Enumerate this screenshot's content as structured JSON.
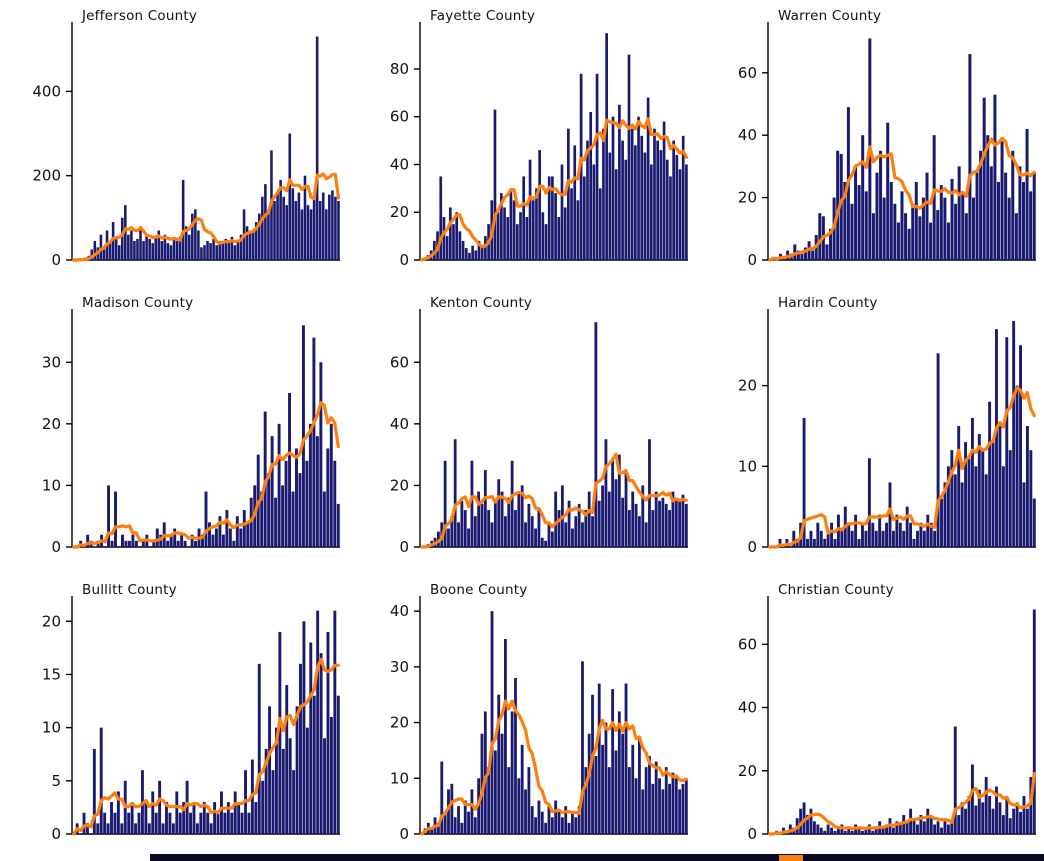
{
  "figure": {
    "kind": "small-multiples",
    "rows": 3,
    "cols": 3,
    "grid": false,
    "legend": "none"
  },
  "colors": {
    "bar": "#191970",
    "line": "#ff7f0e",
    "spine": "#000000",
    "text": "#111111"
  },
  "chart_data": [
    {
      "type": "bar",
      "title": "Jefferson County",
      "xlabel": "",
      "ylabel": "",
      "yticks": [
        0,
        200,
        400
      ],
      "ylim": [
        0,
        555
      ],
      "overlay_line": "rolling-mean-7",
      "values": [
        0,
        0,
        3,
        2,
        6,
        10,
        25,
        45,
        30,
        60,
        25,
        70,
        40,
        90,
        55,
        35,
        100,
        130,
        60,
        70,
        45,
        50,
        80,
        45,
        60,
        50,
        40,
        55,
        70,
        45,
        60,
        40,
        35,
        50,
        45,
        55,
        190,
        80,
        60,
        110,
        120,
        70,
        30,
        35,
        45,
        40,
        50,
        35,
        45,
        40,
        50,
        45,
        55,
        35,
        45,
        60,
        120,
        80,
        70,
        65,
        90,
        110,
        150,
        180,
        120,
        260,
        140,
        160,
        190,
        150,
        130,
        300,
        170,
        140,
        160,
        120,
        200,
        130,
        120,
        150,
        530,
        140,
        160,
        120,
        155,
        165,
        150,
        140
      ]
    },
    {
      "type": "bar",
      "title": "Fayette County",
      "xlabel": "",
      "ylabel": "",
      "yticks": [
        0,
        20,
        40,
        60,
        80
      ],
      "ylim": [
        0,
        98
      ],
      "overlay_line": "rolling-mean-7",
      "values": [
        0,
        1,
        2,
        4,
        8,
        12,
        35,
        18,
        10,
        22,
        15,
        20,
        12,
        8,
        5,
        3,
        6,
        4,
        8,
        5,
        10,
        15,
        25,
        63,
        20,
        28,
        22,
        18,
        30,
        25,
        15,
        20,
        35,
        18,
        42,
        25,
        30,
        46,
        20,
        15,
        35,
        35,
        28,
        18,
        40,
        22,
        55,
        30,
        48,
        25,
        78,
        35,
        50,
        62,
        40,
        78,
        30,
        55,
        95,
        45,
        60,
        38,
        65,
        50,
        42,
        86,
        55,
        48,
        60,
        52,
        45,
        68,
        40,
        55,
        50,
        46,
        58,
        42,
        35,
        50,
        44,
        38,
        52,
        40
      ]
    },
    {
      "type": "bar",
      "title": "Warren County",
      "xlabel": "",
      "ylabel": "",
      "yticks": [
        0,
        20,
        40,
        60
      ],
      "ylim": [
        0,
        75
      ],
      "overlay_line": "rolling-mean-7",
      "values": [
        0,
        1,
        0,
        2,
        1,
        3,
        2,
        5,
        3,
        2,
        4,
        6,
        3,
        8,
        15,
        14,
        5,
        10,
        20,
        35,
        34,
        25,
        49,
        18,
        30,
        24,
        40,
        22,
        71,
        15,
        28,
        35,
        20,
        44,
        25,
        18,
        12,
        22,
        15,
        10,
        18,
        25,
        14,
        20,
        28,
        12,
        40,
        16,
        24,
        20,
        12,
        26,
        18,
        30,
        22,
        15,
        66,
        20,
        28,
        35,
        52,
        40,
        30,
        53,
        25,
        38,
        28,
        20,
        35,
        15,
        30,
        25,
        42,
        22,
        28
      ]
    },
    {
      "type": "bar",
      "title": "Madison County",
      "xlabel": "",
      "ylabel": "",
      "yticks": [
        0,
        10,
        20,
        30
      ],
      "ylim": [
        0,
        38
      ],
      "overlay_line": "rolling-mean-7",
      "values": [
        0,
        0,
        1,
        0,
        2,
        1,
        0,
        1,
        2,
        0,
        10,
        1,
        9,
        0,
        2,
        1,
        1,
        2,
        1,
        0,
        1,
        2,
        0,
        1,
        3,
        2,
        4,
        1,
        2,
        3,
        1,
        2,
        1,
        0,
        2,
        1,
        3,
        2,
        9,
        4,
        2,
        3,
        5,
        2,
        6,
        3,
        1,
        5,
        3,
        6,
        4,
        8,
        10,
        15,
        9,
        22,
        12,
        18,
        8,
        20,
        10,
        14,
        25,
        9,
        16,
        12,
        36,
        14,
        20,
        34,
        18,
        30,
        9,
        16,
        20,
        14,
        7
      ]
    },
    {
      "type": "bar",
      "title": "Kenton County",
      "xlabel": "",
      "ylabel": "",
      "yticks": [
        0,
        20,
        40,
        60
      ],
      "ylim": [
        0,
        76
      ],
      "overlay_line": "rolling-mean-7",
      "values": [
        0,
        0,
        1,
        2,
        3,
        5,
        8,
        28,
        6,
        10,
        35,
        8,
        15,
        12,
        6,
        28,
        10,
        18,
        14,
        25,
        12,
        8,
        15,
        22,
        18,
        10,
        16,
        28,
        12,
        18,
        20,
        8,
        14,
        10,
        6,
        12,
        3,
        2,
        8,
        5,
        18,
        12,
        20,
        8,
        15,
        6,
        10,
        14,
        8,
        12,
        18,
        10,
        73,
        15,
        20,
        35,
        18,
        28,
        22,
        30,
        16,
        25,
        12,
        18,
        14,
        10,
        20,
        8,
        35,
        12,
        18,
        15,
        16,
        14,
        12,
        18,
        16,
        15,
        17,
        14
      ]
    },
    {
      "type": "bar",
      "title": "Hardin County",
      "xlabel": "",
      "ylabel": "",
      "yticks": [
        0,
        10,
        20
      ],
      "ylim": [
        0,
        29
      ],
      "overlay_line": "rolling-mean-7",
      "values": [
        0,
        0,
        0,
        1,
        0,
        1,
        0,
        2,
        1,
        3,
        16,
        1,
        2,
        1,
        3,
        2,
        1,
        2,
        3,
        1,
        4,
        2,
        5,
        3,
        2,
        4,
        1,
        3,
        2,
        11,
        3,
        2,
        4,
        2,
        3,
        8,
        2,
        4,
        3,
        2,
        5,
        3,
        1,
        2,
        3,
        2,
        4,
        3,
        2,
        24,
        6,
        8,
        10,
        12,
        9,
        15,
        8,
        13,
        11,
        16,
        10,
        14,
        12,
        9,
        18,
        13,
        27,
        15,
        10,
        26,
        12,
        28,
        20,
        25,
        8,
        15,
        12,
        6
      ]
    },
    {
      "type": "bar",
      "title": "Bullitt County",
      "xlabel": "",
      "ylabel": "",
      "yticks": [
        0,
        5,
        10,
        15,
        20
      ],
      "ylim": [
        0,
        22
      ],
      "overlay_line": "rolling-mean-7",
      "values": [
        0,
        1,
        0,
        2,
        1,
        0,
        8,
        1,
        10,
        2,
        1,
        3,
        2,
        4,
        1,
        5,
        2,
        3,
        1,
        2,
        6,
        3,
        1,
        4,
        2,
        5,
        1,
        3,
        2,
        1,
        4,
        2,
        3,
        5,
        2,
        3,
        1,
        2,
        3,
        2,
        1,
        3,
        2,
        4,
        2,
        3,
        2,
        4,
        3,
        2,
        6,
        2,
        7,
        3,
        16,
        5,
        8,
        12,
        6,
        10,
        19,
        8,
        14,
        9,
        6,
        12,
        16,
        20,
        10,
        18,
        13,
        21,
        17,
        9,
        19,
        11,
        21,
        13
      ]
    },
    {
      "type": "bar",
      "title": "Boone County",
      "xlabel": "",
      "ylabel": "",
      "yticks": [
        0,
        10,
        20,
        30,
        40
      ],
      "ylim": [
        0,
        42
      ],
      "overlay_line": "rolling-mean-7",
      "values": [
        0,
        1,
        2,
        1,
        3,
        2,
        13,
        4,
        8,
        9,
        3,
        5,
        2,
        6,
        4,
        8,
        3,
        10,
        18,
        22,
        12,
        40,
        15,
        25,
        18,
        35,
        12,
        22,
        28,
        10,
        16,
        8,
        12,
        5,
        3,
        6,
        4,
        2,
        5,
        3,
        6,
        4,
        3,
        5,
        2,
        4,
        3,
        5,
        31,
        12,
        18,
        25,
        14,
        27,
        16,
        20,
        12,
        26,
        15,
        22,
        18,
        27,
        12,
        16,
        10,
        17,
        8,
        12,
        14,
        9,
        13,
        10,
        8,
        12,
        9,
        11,
        10,
        8,
        9,
        10
      ]
    },
    {
      "type": "bar",
      "title": "Christian County",
      "xlabel": "",
      "ylabel": "",
      "yticks": [
        0,
        20,
        40,
        60
      ],
      "ylim": [
        0,
        74
      ],
      "overlay_line": "rolling-mean-7",
      "values": [
        0,
        0,
        1,
        0,
        2,
        1,
        3,
        2,
        5,
        8,
        10,
        6,
        8,
        4,
        3,
        2,
        1,
        3,
        2,
        1,
        2,
        3,
        1,
        2,
        1,
        3,
        2,
        1,
        2,
        3,
        1,
        2,
        4,
        2,
        3,
        5,
        2,
        4,
        3,
        6,
        4,
        8,
        5,
        3,
        6,
        4,
        8,
        5,
        3,
        4,
        2,
        5,
        3,
        4,
        34,
        6,
        10,
        8,
        12,
        22,
        9,
        14,
        10,
        18,
        12,
        8,
        15,
        10,
        6,
        12,
        5,
        8,
        10,
        7,
        12,
        8,
        18,
        71
      ]
    }
  ]
}
